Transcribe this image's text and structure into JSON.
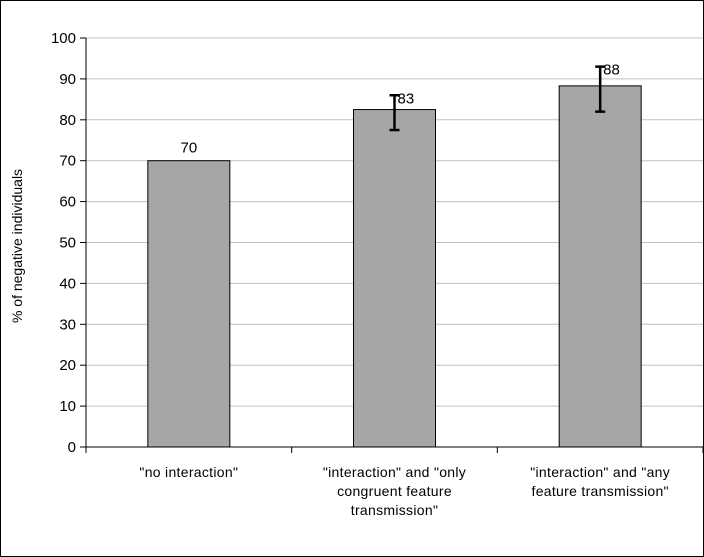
{
  "chart_data": {
    "type": "bar",
    "title": "",
    "xlabel": "",
    "ylabel": "% of negative individuals",
    "ylim": [
      0,
      100
    ],
    "yticks": [
      0,
      10,
      20,
      30,
      40,
      50,
      60,
      70,
      80,
      90,
      100
    ],
    "grid": true,
    "legend": "none",
    "categories": [
      [
        "\"no interaction\""
      ],
      [
        "\"interaction\" and \"only",
        "congruent feature",
        "transmission\""
      ],
      [
        "\"interaction\" and \"any",
        "feature transmission\""
      ]
    ],
    "values": [
      70,
      82.5,
      88.3
    ],
    "data_labels": [
      "70",
      "83",
      "88"
    ],
    "error_bars": [
      null,
      [
        77.5,
        86
      ],
      [
        82,
        93
      ]
    ],
    "bar_color": "#a6a6a6",
    "bar_border_color": "#000000",
    "grid_color": "#c0c0c0"
  }
}
